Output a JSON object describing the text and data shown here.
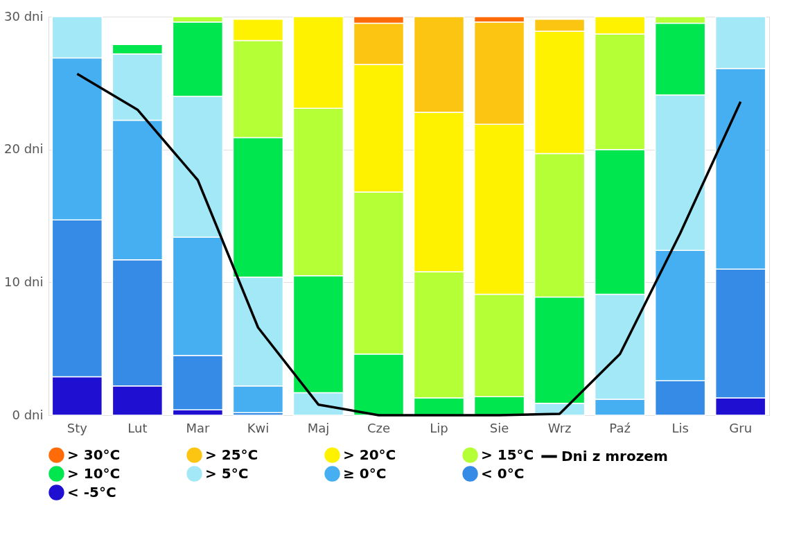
{
  "chart_data": {
    "type": "bar",
    "stacked": true,
    "categories": [
      "Sty",
      "Lut",
      "Mar",
      "Kwi",
      "Maj",
      "Cze",
      "Lip",
      "Sie",
      "Wrz",
      "Paź",
      "Lis",
      "Gru"
    ],
    "series": [
      {
        "name": "< -5°C",
        "color": "#1f0fd1",
        "values": [
          2.9,
          2.2,
          0.4,
          0,
          0,
          0,
          0,
          0,
          0,
          0,
          0,
          1.3
        ]
      },
      {
        "name": "< 0°C",
        "color": "#368be6",
        "values": [
          11.8,
          9.5,
          4.1,
          0.2,
          0,
          0,
          0,
          0,
          0,
          0,
          2.6,
          9.7
        ]
      },
      {
        "name": "≥ 0°C",
        "color": "#46aff2",
        "values": [
          12.2,
          10.5,
          8.9,
          2.0,
          0,
          0,
          0,
          0,
          0,
          1.2,
          9.8,
          15.1
        ]
      },
      {
        "name": "> 5°C",
        "color": "#a3e8f6",
        "values": [
          3.1,
          5.0,
          10.6,
          8.2,
          1.7,
          0,
          0,
          0,
          0.9,
          7.9,
          11.7,
          3.9
        ]
      },
      {
        "name": "> 10°C",
        "color": "#00e64f",
        "values": [
          0,
          0.7,
          5.6,
          10.5,
          8.8,
          4.6,
          1.3,
          1.4,
          8.0,
          10.9,
          5.4,
          0
        ]
      },
      {
        "name": "> 15°C",
        "color": "#b5ff37",
        "values": [
          0,
          0,
          0.4,
          7.3,
          12.6,
          12.2,
          9.5,
          7.7,
          10.8,
          8.7,
          0.5,
          0
        ]
      },
      {
        "name": "> 20°C",
        "color": "#fff200",
        "values": [
          0,
          0,
          0,
          1.6,
          6.9,
          9.6,
          12.0,
          12.8,
          9.2,
          1.3,
          0,
          0
        ]
      },
      {
        "name": "> 25°C",
        "color": "#fcc512",
        "values": [
          0,
          0,
          0,
          0,
          0,
          3.1,
          7.2,
          7.7,
          0.9,
          0,
          0,
          0
        ]
      },
      {
        "name": "> 30°C",
        "color": "#fe6b08",
        "values": [
          0,
          0,
          0,
          0,
          0,
          0.5,
          0,
          0.4,
          0,
          0,
          0,
          0
        ]
      },
      {
        "name": "Dni z mrozem",
        "type": "line",
        "color": "#000000",
        "values": [
          25.7,
          23.0,
          17.7,
          6.6,
          0.8,
          0,
          0,
          0,
          0.1,
          4.6,
          13.7,
          23.6
        ]
      }
    ],
    "ylim": [
      0,
      30
    ],
    "yticks": [
      {
        "value": 0,
        "label": "0 dni"
      },
      {
        "value": 10,
        "label": "10 dni"
      },
      {
        "value": 20,
        "label": "20 dni"
      },
      {
        "value": 30,
        "label": "30 dni"
      }
    ],
    "grid": "y",
    "legend": "bottom",
    "line_style": "solid",
    "marker": "none"
  }
}
